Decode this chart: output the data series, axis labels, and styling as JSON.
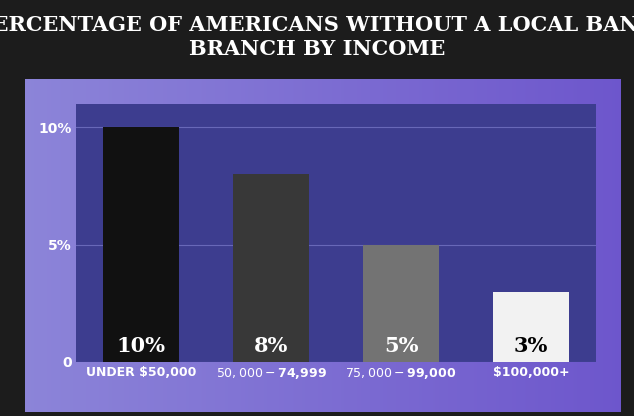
{
  "title": "PERCENTAGE OF AMERICANS WITHOUT A LOCAL BANK\nBRANCH BY INCOME",
  "categories": [
    "UNDER $50,000",
    "$50,000-$74,999",
    "$75,000-$99,000",
    "$100,000+"
  ],
  "values": [
    10,
    8,
    5,
    3
  ],
  "bar_colors": [
    "#111111",
    "#383838",
    "#737373",
    "#f2f2f2"
  ],
  "bar_labels": [
    "10%",
    "8%",
    "5%",
    "3%"
  ],
  "bar_label_colors": [
    "white",
    "white",
    "white",
    "black"
  ],
  "title_bg_color": "#1c1c1c",
  "title_text_color": "white",
  "plot_bg_color": "#3d3d8f",
  "outer_bg_left": "#7a7acc",
  "outer_bg_right": "#5050aa",
  "ytick_labels": [
    "0",
    "5%",
    "10%"
  ],
  "ytick_values": [
    0,
    5,
    10
  ],
  "ylim": [
    0,
    11
  ],
  "grid_color": "#5555a0",
  "tick_label_color": "white",
  "xticklabel_color": "white",
  "title_fontsize": 15,
  "bar_label_fontsize": 15,
  "tick_fontsize": 10,
  "xlabel_fontsize": 9
}
